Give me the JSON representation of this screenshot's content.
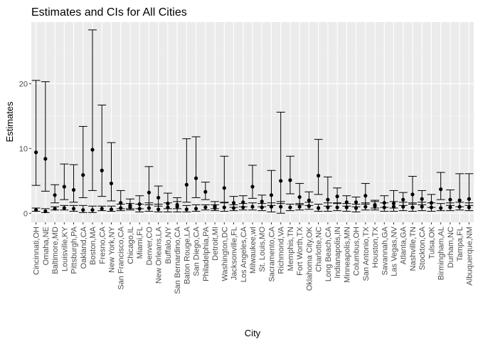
{
  "chart_data": {
    "type": "errorbar",
    "title": "Estimates and CIs for All Cities",
    "xlabel": "City",
    "ylabel": "Estimates",
    "ylim": [
      -1.4,
      29.5
    ],
    "yticks": [
      0,
      10,
      20
    ],
    "grid": true,
    "colors": {
      "panel": "#ebebeb",
      "grid_major": "#ffffff",
      "grid_minor": "#f4f4f4",
      "mark": "#000000"
    },
    "categories": [
      "Cincinnati,OH",
      "Omaha,NE",
      "Baltimore,MD",
      "Louisville,KY",
      "Pittsburgh,PA",
      "Oakland,CA",
      "Boston,MA",
      "Fresno,CA",
      "New York,NY",
      "San Francisco,CA",
      "Chicago,IL",
      "Miami,FL",
      "Denver,CO",
      "New Orleans,LA",
      "Buffalo,NY",
      "San Bernardino,CA",
      "Baton Rouge,LA",
      "San Diego,CA",
      "Philadelphia,PA",
      "Detroit,MI",
      "Washington,DC",
      "Jacksonville,FL",
      "Los Angeles,CA",
      "Milwaukee,wI",
      "St. Louis,MO",
      "Sacramento,CA",
      "Richmond,VA",
      "Memphis,TN",
      "Fort Worth,TX",
      "Oklahoma City,OK",
      "Charlotte,NC",
      "Long Beach,CA",
      "Indianapolis,IN",
      "Minneapolis,MN",
      "Columbus,OH",
      "San Antonio,TX",
      "Houston,TX",
      "Savannah,GA",
      "Las Vegas,NV",
      "Atlanta,GA",
      "Nashville,TN",
      "Stockton,CA",
      "Tulsa,OK",
      "Birmingham,AL",
      "Durham,NC",
      "Tampa,FL",
      "Albuquerque,NM"
    ],
    "series": [
      {
        "estimate": [
          9.4,
          8.4,
          2.8,
          4.1,
          3.6,
          5.9,
          9.8,
          6.6,
          4.6,
          1.6,
          1.2,
          1.4,
          3.2,
          2.4,
          1.5,
          1.3,
          4.4,
          5.4,
          3.3,
          1.1,
          3.9,
          1.6,
          1.7,
          4.1,
          1.8,
          2.8,
          5.0,
          5.1,
          2.5,
          2.0,
          5.8,
          2.1,
          2.6,
          1.7,
          1.7,
          2.7,
          1.3,
          1.6,
          1.5,
          2.1,
          2.9,
          2.2,
          1.6,
          3.7,
          2.1,
          2.0,
          2.2
        ],
        "lower": [
          4.3,
          3.4,
          1.6,
          2.1,
          1.7,
          2.4,
          3.5,
          2.6,
          1.9,
          0.7,
          0.7,
          0.7,
          1.3,
          1.1,
          0.7,
          0.7,
          1.7,
          2.4,
          2.1,
          0.7,
          1.7,
          0.9,
          1.0,
          2.3,
          1.0,
          1.2,
          1.5,
          3.0,
          1.3,
          1.2,
          2.9,
          1.1,
          1.6,
          1.1,
          1.0,
          1.4,
          0.8,
          0.9,
          0.8,
          1.2,
          1.4,
          1.3,
          0.9,
          2.1,
          1.2,
          1.0,
          1.2
        ],
        "upper": [
          20.5,
          20.3,
          4.4,
          7.6,
          7.5,
          13.4,
          28.3,
          16.7,
          10.9,
          3.5,
          2.2,
          2.7,
          7.2,
          4.2,
          3.1,
          2.4,
          11.5,
          11.8,
          4.8,
          1.8,
          8.8,
          2.6,
          2.7,
          7.4,
          2.8,
          6.6,
          15.6,
          8.8,
          4.6,
          3.3,
          11.4,
          5.6,
          3.9,
          2.7,
          2.5,
          4.6,
          2.0,
          2.7,
          3.5,
          3.2,
          5.7,
          3.5,
          2.9,
          6.3,
          3.6,
          6.1,
          6.1
        ]
      },
      {
        "estimate": [
          0.5,
          0.3,
          0.7,
          0.8,
          0.7,
          0.5,
          0.5,
          0.7,
          0.6,
          0.8,
          0.9,
          0.7,
          0.8,
          0.6,
          0.9,
          1.0,
          0.6,
          0.7,
          0.9,
          0.8,
          0.9,
          0.8,
          0.9,
          1.0,
          0.9,
          1.0,
          1.0,
          0.9,
          1.0,
          1.1,
          0.8,
          0.9,
          0.9,
          0.9,
          0.8,
          1.0,
          1.1,
          0.9,
          1.0,
          1.0,
          0.9,
          1.0,
          0.9,
          0.8,
          0.9,
          1.0,
          0.9
        ],
        "lower": [
          0.3,
          0.1,
          0.5,
          0.5,
          0.3,
          0.1,
          0.1,
          0.4,
          0.3,
          0.4,
          0.5,
          0.2,
          0.3,
          0.2,
          0.2,
          0.2,
          0.2,
          0.3,
          0.5,
          0.4,
          0.3,
          0.4,
          0.5,
          0.5,
          0.4,
          0.2,
          0.0,
          0.4,
          0.5,
          0.6,
          0.3,
          0.3,
          0.4,
          0.3,
          0.2,
          0.5,
          0.5,
          0.3,
          0.3,
          0.4,
          0.3,
          0.4,
          0.3,
          0.4,
          0.4,
          0.5,
          0.4
        ],
        "upper": [
          0.8,
          0.7,
          1.0,
          1.2,
          1.2,
          1.2,
          1.1,
          1.1,
          1.1,
          1.4,
          1.5,
          1.4,
          1.6,
          1.4,
          1.6,
          1.8,
          1.2,
          1.3,
          1.3,
          1.3,
          1.6,
          1.3,
          1.5,
          1.6,
          1.5,
          1.6,
          1.8,
          1.4,
          1.5,
          1.7,
          1.4,
          1.6,
          1.5,
          1.5,
          1.4,
          1.6,
          1.8,
          1.6,
          1.8,
          1.7,
          1.6,
          1.7,
          1.6,
          1.5,
          1.6,
          1.7,
          1.6
        ]
      }
    ]
  }
}
